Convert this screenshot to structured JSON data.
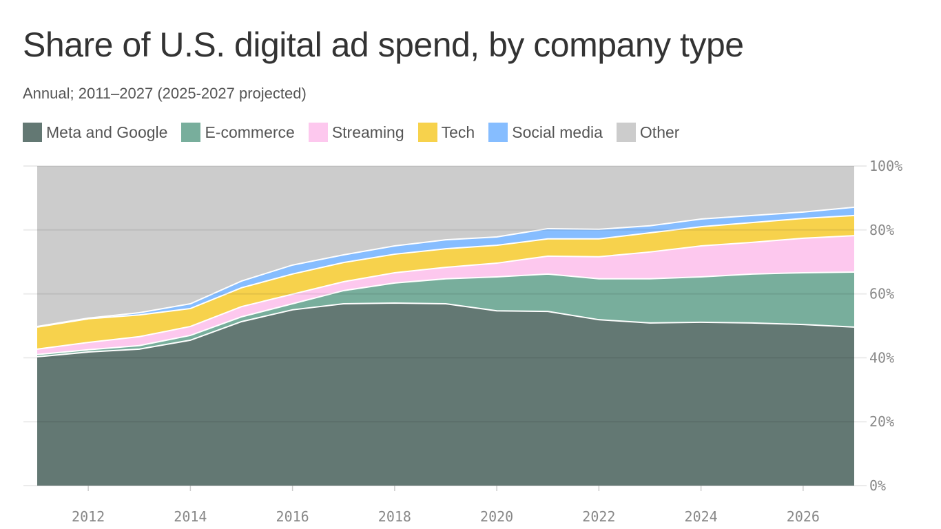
{
  "chart_data": {
    "type": "area",
    "stacked": true,
    "title": "Share of U.S. digital ad spend, by company type",
    "subtitle": "Annual; 2011–2027 (2025-2027 projected)",
    "x": [
      2011,
      2012,
      2013,
      2014,
      2015,
      2016,
      2017,
      2018,
      2019,
      2020,
      2021,
      2022,
      2023,
      2024,
      2025,
      2026,
      2027
    ],
    "xlim": [
      2011,
      2027
    ],
    "xticks": [
      "2012",
      "2014",
      "2016",
      "2018",
      "2020",
      "2022",
      "2024",
      "2026"
    ],
    "ylim": [
      0,
      100
    ],
    "yticks": [
      "0%",
      "20%",
      "40%",
      "60%",
      "80%",
      "100%"
    ],
    "grid": true,
    "legend_placement": "top-left",
    "series": [
      {
        "name": "Meta and Google",
        "color": "#637873",
        "values": [
          40.3,
          41.8,
          42.7,
          45.5,
          51.3,
          55.0,
          56.9,
          57.1,
          56.9,
          54.7,
          54.5,
          51.9,
          50.9,
          51.1,
          50.9,
          50.4,
          49.6
        ]
      },
      {
        "name": "E-commerce",
        "color": "#78ae9c",
        "values": [
          0.7,
          0.7,
          1.1,
          1.5,
          1.5,
          1.9,
          4.1,
          6.3,
          7.8,
          10.6,
          11.7,
          12.8,
          13.8,
          14.2,
          15.3,
          16.2,
          17.2
        ]
      },
      {
        "name": "Streaming",
        "color": "#fdc8ee",
        "values": [
          1.7,
          2.3,
          2.8,
          2.8,
          3.2,
          3.0,
          2.8,
          3.2,
          3.6,
          4.3,
          5.6,
          6.9,
          8.4,
          9.7,
          9.9,
          10.8,
          11.4
        ]
      },
      {
        "name": "Tech",
        "color": "#f7d24c",
        "values": [
          6.9,
          7.4,
          6.8,
          5.6,
          5.9,
          6.3,
          6.0,
          5.8,
          5.8,
          5.6,
          5.4,
          5.6,
          6.0,
          6.0,
          6.2,
          6.2,
          6.3
        ]
      },
      {
        "name": "Social media",
        "color": "#86bdff",
        "values": [
          0.2,
          0.2,
          0.7,
          1.5,
          2.1,
          2.8,
          2.4,
          2.6,
          2.8,
          2.6,
          3.2,
          3.0,
          2.2,
          2.4,
          2.2,
          2.0,
          2.6
        ]
      },
      {
        "name": "Other",
        "color": "#cccccc",
        "values": [
          50.2,
          47.6,
          45.9,
          43.1,
          36.0,
          31.0,
          27.8,
          25.0,
          23.1,
          22.2,
          19.6,
          19.8,
          18.7,
          16.6,
          15.5,
          14.4,
          12.9
        ]
      }
    ]
  }
}
